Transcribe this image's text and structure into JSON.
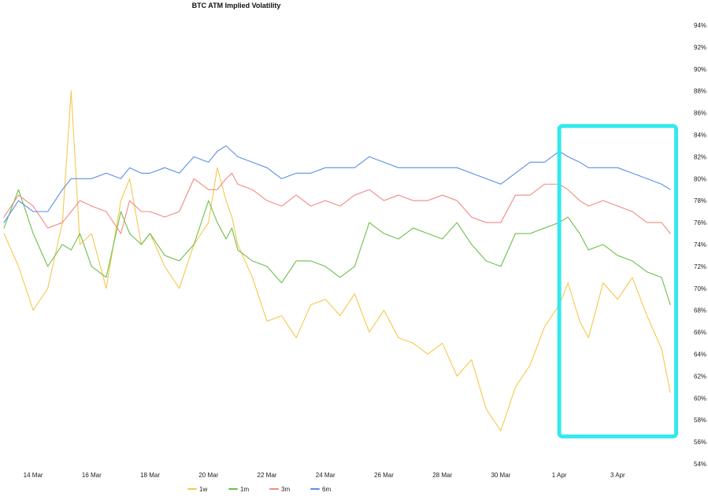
{
  "chart_data": {
    "type": "line",
    "title": "BTC ATM Implied Volatility",
    "xlabel": "",
    "ylabel": "",
    "ylim": [
      54,
      95
    ],
    "y_ticks": [
      "94%",
      "92%",
      "90%",
      "88%",
      "86%",
      "84%",
      "82%",
      "80%",
      "78%",
      "76%",
      "74%",
      "72%",
      "70%",
      "68%",
      "66%",
      "64%",
      "62%",
      "60%",
      "58%",
      "56%",
      "54%"
    ],
    "x_tick_labels": [
      "14 Mar",
      "16 Mar",
      "18 Mar",
      "20 Mar",
      "22 Mar",
      "24 Mar",
      "26 Mar",
      "28 Mar",
      "30 Mar",
      "1 Apr",
      "3 Apr"
    ],
    "x_tick_days": [
      14,
      16,
      18,
      20,
      22,
      24,
      26,
      28,
      30,
      32,
      34
    ],
    "grid": false,
    "legend_position": "bottom",
    "series": [
      {
        "name": "1w",
        "color": "#f5c84c",
        "x": [
          13.0,
          13.5,
          14.0,
          14.5,
          15.0,
          15.3,
          15.6,
          16.0,
          16.5,
          17.0,
          17.3,
          17.7,
          18.0,
          18.5,
          19.0,
          19.5,
          20.0,
          20.3,
          20.6,
          20.8,
          21.0,
          21.5,
          22.0,
          22.5,
          23.0,
          23.5,
          24.0,
          24.5,
          25.0,
          25.5,
          26.0,
          26.5,
          27.0,
          27.5,
          28.0,
          28.5,
          29.0,
          29.5,
          30.0,
          30.5,
          31.0,
          31.5,
          32.0,
          32.3,
          32.7,
          33.0,
          33.5,
          34.0,
          34.5,
          35.0,
          35.5,
          35.8
        ],
        "values": [
          75.0,
          72.0,
          68.0,
          70.0,
          76.0,
          88.0,
          74.0,
          75.0,
          70.0,
          78.0,
          80.0,
          74.0,
          75.0,
          72.0,
          70.0,
          74.0,
          76.0,
          81.0,
          78.0,
          76.5,
          74.0,
          71.0,
          67.0,
          67.5,
          65.5,
          68.5,
          69.0,
          67.5,
          69.5,
          66.0,
          68.0,
          65.5,
          65.0,
          64.0,
          65.0,
          62.0,
          63.5,
          59.0,
          57.0,
          61.0,
          63.0,
          66.5,
          68.5,
          70.5,
          67.0,
          65.5,
          70.5,
          69.0,
          71.0,
          67.5,
          64.5,
          60.5
        ]
      },
      {
        "name": "1m",
        "color": "#6cc04a",
        "x": [
          13.0,
          13.5,
          14.0,
          14.5,
          15.0,
          15.3,
          15.6,
          16.0,
          16.5,
          17.0,
          17.3,
          17.7,
          18.0,
          18.5,
          19.0,
          19.5,
          20.0,
          20.3,
          20.6,
          20.8,
          21.0,
          21.5,
          22.0,
          22.5,
          23.0,
          23.5,
          24.0,
          24.5,
          25.0,
          25.5,
          26.0,
          26.5,
          27.0,
          27.5,
          28.0,
          28.5,
          29.0,
          29.5,
          30.0,
          30.5,
          31.0,
          31.5,
          32.0,
          32.3,
          32.7,
          33.0,
          33.5,
          34.0,
          34.5,
          35.0,
          35.5,
          35.8
        ],
        "values": [
          75.5,
          79.0,
          75.0,
          72.0,
          74.0,
          73.5,
          75.0,
          72.0,
          71.0,
          77.0,
          75.0,
          74.0,
          75.0,
          73.0,
          72.5,
          74.0,
          78.0,
          76.0,
          74.5,
          75.5,
          73.5,
          72.5,
          72.0,
          70.5,
          72.5,
          72.5,
          72.0,
          71.0,
          72.0,
          76.0,
          75.0,
          74.5,
          75.5,
          75.0,
          74.5,
          76.0,
          74.0,
          72.5,
          72.0,
          75.0,
          75.0,
          75.5,
          76.0,
          76.5,
          75.0,
          73.5,
          74.0,
          73.0,
          72.5,
          71.5,
          71.0,
          68.5
        ]
      },
      {
        "name": "3m",
        "color": "#f08a82",
        "x": [
          13.0,
          13.5,
          14.0,
          14.5,
          15.0,
          15.3,
          15.6,
          16.0,
          16.5,
          17.0,
          17.3,
          17.7,
          18.0,
          18.5,
          19.0,
          19.5,
          20.0,
          20.3,
          20.6,
          20.8,
          21.0,
          21.5,
          22.0,
          22.5,
          23.0,
          23.5,
          24.0,
          24.5,
          25.0,
          25.5,
          26.0,
          26.5,
          27.0,
          27.5,
          28.0,
          28.5,
          29.0,
          29.5,
          30.0,
          30.5,
          31.0,
          31.5,
          32.0,
          32.3,
          32.7,
          33.0,
          33.5,
          34.0,
          34.5,
          35.0,
          35.5,
          35.8
        ],
        "values": [
          76.5,
          78.5,
          77.5,
          75.5,
          76.0,
          77.0,
          78.0,
          77.5,
          77.0,
          75.0,
          78.0,
          77.0,
          77.0,
          76.5,
          77.0,
          80.0,
          79.0,
          79.0,
          80.0,
          80.5,
          79.5,
          79.0,
          78.0,
          77.5,
          78.5,
          77.5,
          78.0,
          77.5,
          78.5,
          79.0,
          78.0,
          78.5,
          78.0,
          78.0,
          78.5,
          78.0,
          76.5,
          76.0,
          76.0,
          78.5,
          78.5,
          79.5,
          79.5,
          79.0,
          78.0,
          77.5,
          78.0,
          77.5,
          77.0,
          76.0,
          76.0,
          75.0
        ]
      },
      {
        "name": "6m",
        "color": "#5b8ee6",
        "x": [
          13.0,
          13.5,
          14.0,
          14.5,
          15.0,
          15.3,
          15.6,
          16.0,
          16.5,
          17.0,
          17.3,
          17.7,
          18.0,
          18.5,
          19.0,
          19.5,
          20.0,
          20.3,
          20.6,
          20.8,
          21.0,
          21.5,
          22.0,
          22.5,
          23.0,
          23.5,
          24.0,
          24.5,
          25.0,
          25.5,
          26.0,
          26.5,
          27.0,
          27.5,
          28.0,
          28.5,
          29.0,
          29.5,
          30.0,
          30.5,
          31.0,
          31.5,
          32.0,
          32.3,
          32.7,
          33.0,
          33.5,
          34.0,
          34.5,
          35.0,
          35.5,
          35.8
        ],
        "values": [
          76.0,
          78.0,
          77.0,
          77.0,
          79.0,
          80.0,
          80.0,
          80.0,
          80.5,
          80.0,
          81.0,
          80.5,
          80.5,
          81.0,
          80.5,
          82.0,
          81.5,
          82.5,
          83.0,
          82.5,
          82.0,
          81.5,
          81.0,
          80.0,
          80.5,
          80.5,
          81.0,
          81.0,
          81.0,
          82.0,
          81.5,
          81.0,
          81.0,
          81.0,
          81.0,
          81.0,
          80.5,
          80.0,
          79.5,
          80.5,
          81.5,
          81.5,
          82.5,
          82.0,
          81.5,
          81.0,
          81.0,
          81.0,
          80.5,
          80.0,
          79.5,
          79.0
        ]
      }
    ],
    "highlight_box": {
      "x_start": 32.0,
      "x_end": 36.0,
      "y_min": 56.5,
      "y_max": 84.8,
      "color": "#33e8f0"
    }
  }
}
